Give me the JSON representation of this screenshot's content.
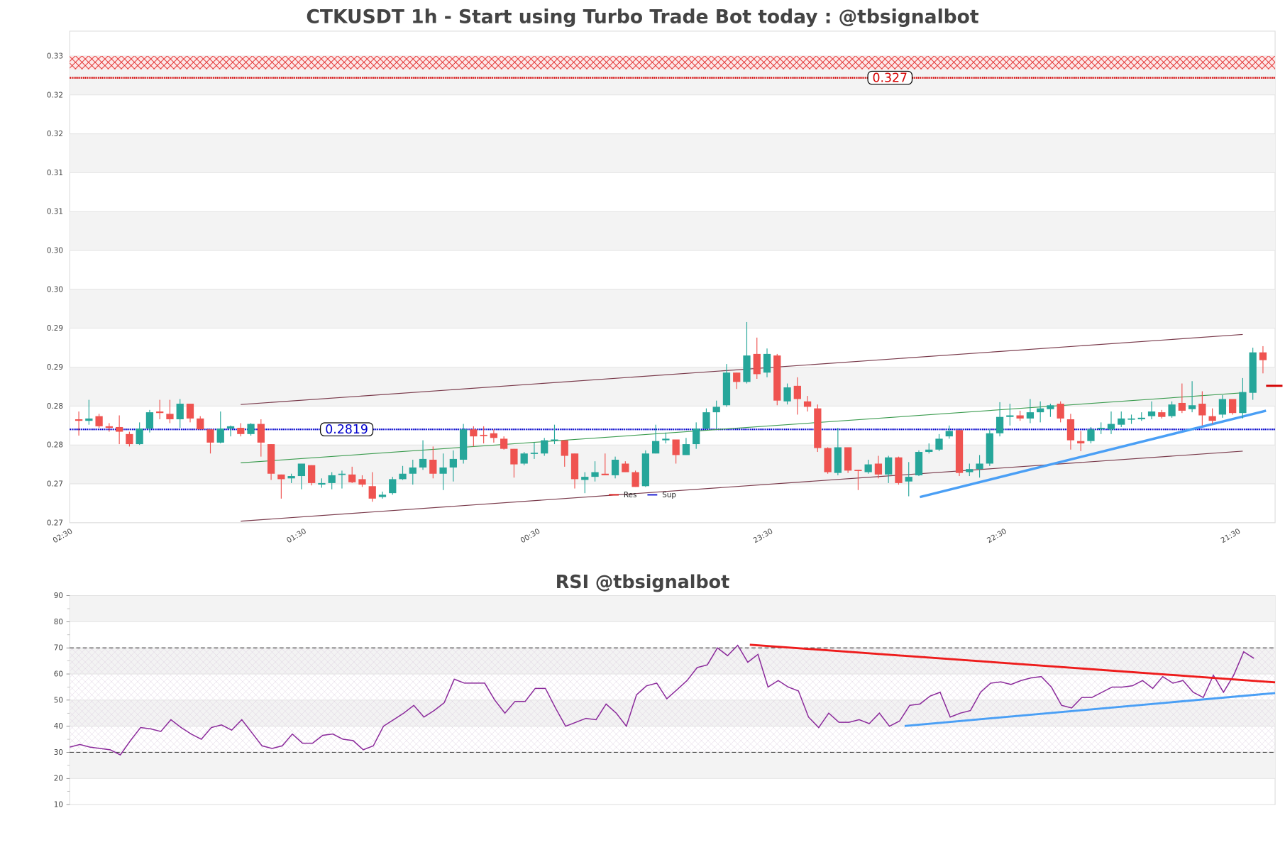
{
  "title": "CTKUSDT 1h - Start using Turbo Trade Bot today : @tbsignalbot",
  "rsi_title": "RSI @tbsignalbot",
  "colors": {
    "up": "#26a69a",
    "down": "#ef5350",
    "resistance": "#d40000",
    "support": "#0000cc",
    "channel": "#7a3b4c",
    "mid": "#3c9c50",
    "trend_blue": "#4a9ff5",
    "trend_red": "#ee1c1c",
    "rsi": "#8b2a9b",
    "title": "#444444"
  },
  "chart_data": [
    {
      "type": "candlestick",
      "title": "CTKUSDT 1h - Start using Turbo Trade Bot today : @tbsignalbot",
      "ylim": [
        0.27,
        0.3332
      ],
      "xlim": [
        -0.9,
        118.2
      ],
      "grid": true,
      "y_ticks": [
        0.27,
        0.275,
        0.28,
        0.285,
        0.29,
        0.295,
        0.3,
        0.305,
        0.31,
        0.315,
        0.32,
        0.325,
        0.33
      ],
      "y_tick_labels": [
        "0.27",
        "0.27",
        "0.28",
        "0.28",
        "0.29",
        "0.29",
        "0.30",
        "0.30",
        "0.31",
        "0.31",
        "0.32",
        "0.32",
        "0.33"
      ],
      "x_ticks": [
        -0.9,
        22.2,
        45.3,
        68.3,
        91.4,
        114.5
      ],
      "x_tick_labels": [
        "02:30",
        "01:30",
        "00:30",
        "23:30",
        "22:30",
        "21:30"
      ],
      "legend": {
        "placement": "bottom-center",
        "entries": [
          "Res",
          "Sup"
        ]
      },
      "resistance": {
        "value": 0.3272,
        "label": "0.327",
        "zone": [
          0.3283,
          0.33
        ]
      },
      "support": {
        "value": 0.282,
        "label": "0.2819"
      },
      "current_price_marker": 0.2876,
      "lines": [
        {
          "name": "channel-upper",
          "from": [
            16,
            0.2852
          ],
          "to": [
            115,
            0.2942
          ]
        },
        {
          "name": "channel-lower",
          "from": [
            16,
            0.2702
          ],
          "to": [
            115,
            0.2792
          ]
        },
        {
          "name": "channel-mid",
          "from": [
            16,
            0.2777
          ],
          "to": [
            115,
            0.2867
          ]
        },
        {
          "name": "trend-support",
          "from": [
            83.1,
            0.2733
          ],
          "to": [
            117.3,
            0.2844
          ]
        }
      ],
      "ohlc": [
        [
          0.2833,
          0.2843,
          0.2812,
          0.2831
        ],
        [
          0.2831,
          0.2858,
          0.2826,
          0.2834
        ],
        [
          0.2837,
          0.284,
          0.2822,
          0.2824
        ],
        [
          0.2824,
          0.2828,
          0.2817,
          0.2822
        ],
        [
          0.2823,
          0.2838,
          0.2801,
          0.2817
        ],
        [
          0.2814,
          0.2817,
          0.2798,
          0.2801
        ],
        [
          0.2801,
          0.2829,
          0.28,
          0.2821
        ],
        [
          0.2821,
          0.2845,
          0.2816,
          0.2842
        ],
        [
          0.2843,
          0.2858,
          0.2833,
          0.2841
        ],
        [
          0.284,
          0.2858,
          0.2828,
          0.2833
        ],
        [
          0.2833,
          0.2859,
          0.2822,
          0.2853
        ],
        [
          0.2853,
          0.2853,
          0.2829,
          0.2834
        ],
        [
          0.2834,
          0.2837,
          0.282,
          0.282
        ],
        [
          0.282,
          0.282,
          0.2789,
          0.2803
        ],
        [
          0.2803,
          0.2843,
          0.2802,
          0.2821
        ],
        [
          0.2821,
          0.2825,
          0.2811,
          0.2824
        ],
        [
          0.2822,
          0.2828,
          0.2811,
          0.2814
        ],
        [
          0.2814,
          0.2828,
          0.2812,
          0.2827
        ],
        [
          0.2827,
          0.2833,
          0.2785,
          0.2803
        ],
        [
          0.2801,
          0.2801,
          0.2755,
          0.2763
        ],
        [
          0.2762,
          0.2762,
          0.2731,
          0.2756
        ],
        [
          0.2757,
          0.2763,
          0.2751,
          0.276
        ],
        [
          0.276,
          0.2776,
          0.2743,
          0.2776
        ],
        [
          0.2774,
          0.2774,
          0.2748,
          0.2751
        ],
        [
          0.2749,
          0.2757,
          0.2745,
          0.2751
        ],
        [
          0.2751,
          0.2765,
          0.2743,
          0.2761
        ],
        [
          0.2762,
          0.2767,
          0.2744,
          0.2763
        ],
        [
          0.2762,
          0.2772,
          0.2751,
          0.2752
        ],
        [
          0.2756,
          0.2761,
          0.2746,
          0.2749
        ],
        [
          0.2747,
          0.2765,
          0.2727,
          0.2731
        ],
        [
          0.2733,
          0.274,
          0.2731,
          0.2736
        ],
        [
          0.2738,
          0.2759,
          0.2736,
          0.2756
        ],
        [
          0.2756,
          0.2773,
          0.2755,
          0.2763
        ],
        [
          0.2763,
          0.2781,
          0.2749,
          0.2771
        ],
        [
          0.2771,
          0.2806,
          0.2768,
          0.2782
        ],
        [
          0.2781,
          0.2798,
          0.2757,
          0.2763
        ],
        [
          0.2763,
          0.2789,
          0.2742,
          0.2771
        ],
        [
          0.2771,
          0.2793,
          0.2753,
          0.2782
        ],
        [
          0.2781,
          0.2827,
          0.2776,
          0.282
        ],
        [
          0.282,
          0.2824,
          0.2798,
          0.2811
        ],
        [
          0.2813,
          0.2824,
          0.2802,
          0.2812
        ],
        [
          0.2815,
          0.282,
          0.2803,
          0.2809
        ],
        [
          0.2808,
          0.2811,
          0.2794,
          0.2795
        ],
        [
          0.2795,
          0.2795,
          0.2758,
          0.2775
        ],
        [
          0.2776,
          0.2791,
          0.2774,
          0.2789
        ],
        [
          0.2789,
          0.2803,
          0.2782,
          0.279
        ],
        [
          0.2789,
          0.2809,
          0.2786,
          0.2806
        ],
        [
          0.2806,
          0.2826,
          0.2801,
          0.2807
        ],
        [
          0.2806,
          0.2806,
          0.2772,
          0.2786
        ],
        [
          0.2789,
          0.2789,
          0.2744,
          0.2756
        ],
        [
          0.2755,
          0.2765,
          0.2738,
          0.2759
        ],
        [
          0.2759,
          0.2779,
          0.2753,
          0.2765
        ],
        [
          0.2763,
          0.2789,
          0.2761,
          0.2761
        ],
        [
          0.2761,
          0.2785,
          0.2757,
          0.2781
        ],
        [
          0.2776,
          0.2779,
          0.2765,
          0.2765
        ],
        [
          0.2765,
          0.2767,
          0.2746,
          0.2746
        ],
        [
          0.2747,
          0.2793,
          0.2746,
          0.2789
        ],
        [
          0.2789,
          0.2826,
          0.2789,
          0.2805
        ],
        [
          0.2806,
          0.2816,
          0.2802,
          0.2808
        ],
        [
          0.2807,
          0.2807,
          0.2776,
          0.2787
        ],
        [
          0.2787,
          0.2809,
          0.2787,
          0.2801
        ],
        [
          0.2801,
          0.2829,
          0.2795,
          0.2821
        ],
        [
          0.2821,
          0.2847,
          0.282,
          0.2842
        ],
        [
          0.2842,
          0.2857,
          0.2821,
          0.2849
        ],
        [
          0.2851,
          0.2904,
          0.2849,
          0.2893
        ],
        [
          0.2893,
          0.2893,
          0.2872,
          0.2881
        ],
        [
          0.2881,
          0.2958,
          0.2879,
          0.2915
        ],
        [
          0.2917,
          0.2938,
          0.2885,
          0.2891
        ],
        [
          0.2893,
          0.2924,
          0.2887,
          0.2917
        ],
        [
          0.2915,
          0.2917,
          0.2851,
          0.2857
        ],
        [
          0.2856,
          0.2879,
          0.2852,
          0.2874
        ],
        [
          0.2876,
          0.2887,
          0.2839,
          0.2859
        ],
        [
          0.2856,
          0.2863,
          0.2843,
          0.2849
        ],
        [
          0.2847,
          0.2852,
          0.2791,
          0.2796
        ],
        [
          0.2796,
          0.2797,
          0.2763,
          0.2765
        ],
        [
          0.2764,
          0.2822,
          0.2761,
          0.2797
        ],
        [
          0.2797,
          0.2797,
          0.2764,
          0.2767
        ],
        [
          0.2768,
          0.2768,
          0.2742,
          0.2767
        ],
        [
          0.2765,
          0.2781,
          0.2763,
          0.2775
        ],
        [
          0.2776,
          0.2786,
          0.2757,
          0.2762
        ],
        [
          0.2762,
          0.2786,
          0.2751,
          0.2784
        ],
        [
          0.2784,
          0.2785,
          0.2749,
          0.2751
        ],
        [
          0.2753,
          0.2778,
          0.2734,
          0.2759
        ],
        [
          0.2761,
          0.2793,
          0.276,
          0.2791
        ],
        [
          0.2791,
          0.2802,
          0.2789,
          0.2794
        ],
        [
          0.2794,
          0.2814,
          0.2792,
          0.2808
        ],
        [
          0.2811,
          0.2825,
          0.2808,
          0.2818
        ],
        [
          0.2819,
          0.2819,
          0.276,
          0.2764
        ],
        [
          0.2765,
          0.2776,
          0.276,
          0.2769
        ],
        [
          0.2769,
          0.2787,
          0.2758,
          0.2776
        ],
        [
          0.2776,
          0.282,
          0.2773,
          0.2815
        ],
        [
          0.2815,
          0.2855,
          0.2811,
          0.2836
        ],
        [
          0.2836,
          0.2853,
          0.2825,
          0.2838
        ],
        [
          0.2838,
          0.2844,
          0.2831,
          0.2834
        ],
        [
          0.2834,
          0.2859,
          0.2828,
          0.2842
        ],
        [
          0.2842,
          0.2856,
          0.2829,
          0.2847
        ],
        [
          0.2846,
          0.2853,
          0.2836,
          0.2851
        ],
        [
          0.2853,
          0.2856,
          0.2829,
          0.2834
        ],
        [
          0.2833,
          0.284,
          0.2794,
          0.2806
        ],
        [
          0.2805,
          0.2818,
          0.2792,
          0.2802
        ],
        [
          0.2805,
          0.2823,
          0.2802,
          0.282
        ],
        [
          0.2821,
          0.2829,
          0.2814,
          0.2822
        ],
        [
          0.282,
          0.2843,
          0.2814,
          0.2827
        ],
        [
          0.2826,
          0.2843,
          0.2823,
          0.2834
        ],
        [
          0.2833,
          0.2839,
          0.2827,
          0.2834
        ],
        [
          0.2833,
          0.2842,
          0.2831,
          0.2835
        ],
        [
          0.2837,
          0.2856,
          0.2833,
          0.2843
        ],
        [
          0.2842,
          0.2845,
          0.2834,
          0.2836
        ],
        [
          0.2837,
          0.2856,
          0.2835,
          0.2852
        ],
        [
          0.2854,
          0.2879,
          0.2841,
          0.2844
        ],
        [
          0.2846,
          0.2882,
          0.2842,
          0.2851
        ],
        [
          0.2853,
          0.2869,
          0.2825,
          0.2838
        ],
        [
          0.2837,
          0.2847,
          0.2827,
          0.2831
        ],
        [
          0.2839,
          0.2864,
          0.2835,
          0.2859
        ],
        [
          0.2859,
          0.2859,
          0.2839,
          0.2841
        ],
        [
          0.2841,
          0.2886,
          0.2834,
          0.2868
        ],
        [
          0.2867,
          0.2925,
          0.2858,
          0.2919
        ],
        [
          0.2919,
          0.2927,
          0.2892,
          0.2909
        ]
      ]
    },
    {
      "type": "line",
      "title": "RSI @tbsignalbot",
      "ylim": [
        10,
        90
      ],
      "xlim": [
        -0.9,
        118.2
      ],
      "grid": true,
      "y_ticks": [
        10,
        20,
        30,
        40,
        50,
        60,
        70,
        80,
        90
      ],
      "y_tick_labels": [
        "10",
        "20",
        "30",
        "40",
        "50",
        "60",
        "70",
        "80",
        "90"
      ],
      "overbought": 70,
      "oversold": 30,
      "trend_lines": [
        {
          "name": "rsi-resistance-trend",
          "from": [
            66.3,
            71.2
          ],
          "to": [
            118.2,
            56.8
          ]
        },
        {
          "name": "rsi-support-trend",
          "from": [
            81.6,
            40.1
          ],
          "to": [
            118.2,
            52.7
          ]
        }
      ],
      "values": [
        32,
        33,
        32,
        31.5,
        31,
        29,
        34.5,
        39.5,
        39,
        38,
        42.5,
        39.5,
        37,
        35,
        39.5,
        40.5,
        38.5,
        42.5,
        37.5,
        32.5,
        31.5,
        32.5,
        37,
        33.5,
        33.5,
        36.5,
        37,
        35,
        34.5,
        31,
        32.5,
        40,
        42.5,
        45,
        48,
        43.5,
        46,
        49,
        58,
        56.5,
        56.5,
        56.5,
        50,
        45,
        49.5,
        49.5,
        54.5,
        54.5,
        47,
        40,
        41.5,
        43,
        42.5,
        48.5,
        45,
        40,
        52,
        55.5,
        56.5,
        50.5,
        54,
        57.5,
        62.5,
        63.5,
        70,
        67,
        71,
        64.5,
        67.5,
        55,
        57.5,
        55,
        53.5,
        43.5,
        39.5,
        45,
        41.5,
        41.5,
        42.5,
        41,
        45,
        40,
        42,
        48,
        48.5,
        51.5,
        53,
        43.5,
        45,
        46,
        53,
        56.5,
        57,
        56,
        57.5,
        58.5,
        59,
        55,
        48,
        47,
        51,
        51,
        53,
        55,
        55,
        55.5,
        57.5,
        54.5,
        59,
        56.5,
        57.5,
        53,
        51,
        59.5,
        53,
        59.5,
        68.5,
        66
      ]
    }
  ]
}
